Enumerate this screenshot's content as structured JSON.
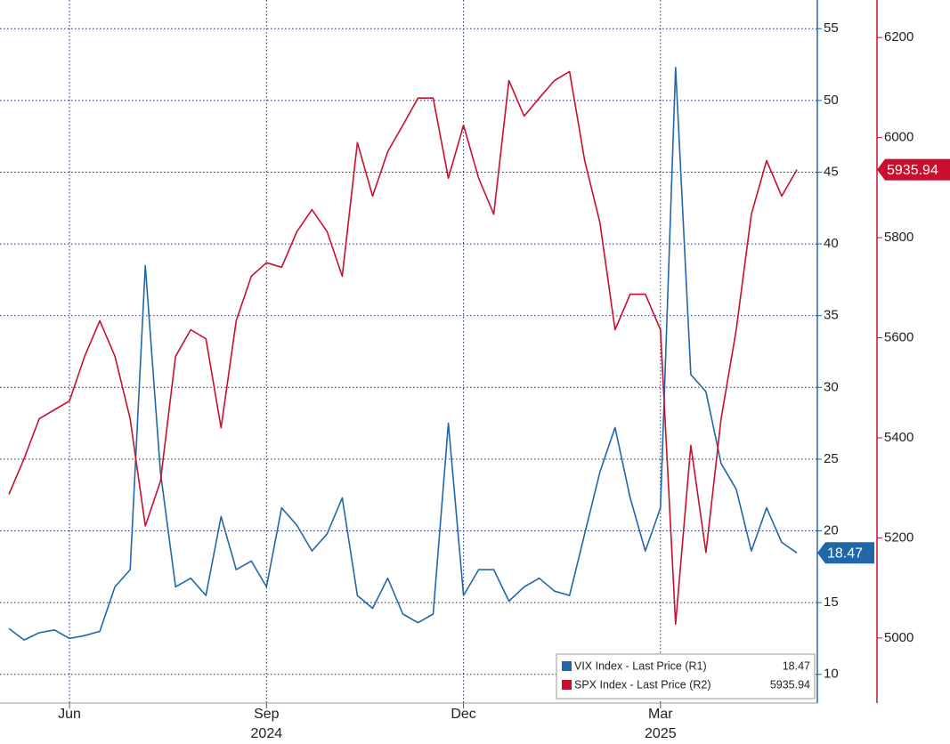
{
  "chart_data": {
    "type": "line",
    "categories": [
      null,
      null,
      null,
      null,
      "Jun",
      null,
      null,
      null,
      null,
      null,
      null,
      null,
      null,
      null,
      null,
      null,
      null,
      "Sep\n2024",
      null,
      null,
      null,
      null,
      null,
      null,
      null,
      null,
      null,
      null,
      null,
      null,
      "Dec",
      null,
      null,
      null,
      null,
      null,
      null,
      null,
      null,
      null,
      null,
      null,
      null,
      "Mar\n2025",
      null,
      null,
      null,
      null,
      null,
      null,
      null,
      null,
      null
    ],
    "series": [
      {
        "name": "VIX Index - Last Price (R1)",
        "color": "#2266aa",
        "axis": "y",
        "values": [
          13.2,
          12.4,
          12.9,
          13.1,
          12.5,
          12.7,
          13.0,
          16.1,
          17.3,
          38.5,
          24.1,
          16.1,
          16.7,
          15.5,
          21.0,
          17.3,
          17.9,
          16.1,
          21.6,
          20.4,
          18.6,
          19.8,
          22.3,
          15.5,
          14.6,
          16.7,
          14.2,
          13.6,
          14.2,
          27.5,
          15.5,
          17.3,
          17.3,
          15.1,
          16.1,
          16.7,
          15.8,
          15.5,
          19.8,
          24.1,
          27.2,
          22.3,
          18.6,
          21.6,
          52.3,
          30.9,
          29.7,
          24.7,
          22.9,
          18.6,
          21.6,
          19.2,
          18.47
        ]
      },
      {
        "name": "SPX Index - Last Price (R2)",
        "color": "#c8102e",
        "axis": "y2",
        "values": [
          5287,
          5358,
          5438,
          5456,
          5474,
          5563,
          5634,
          5563,
          5438,
          5224,
          5313,
          5563,
          5616,
          5598,
          5420,
          5634,
          5723,
          5750,
          5741,
          5812,
          5856,
          5812,
          5723,
          5990,
          5883,
          5972,
          6025,
          6079,
          6079,
          5919,
          6025,
          5919,
          5847,
          6114,
          6043,
          6079,
          6114,
          6132,
          5954,
          5830,
          5616,
          5687,
          5687,
          5616,
          5028,
          5385,
          5171,
          5438,
          5616,
          5847,
          5954,
          5883,
          5935.94
        ]
      }
    ],
    "ylim": [
      8,
      57
    ],
    "yticks": [
      10,
      15,
      20,
      25,
      30,
      35,
      40,
      45,
      50,
      55
    ],
    "y2lim": [
      4870,
      6275
    ],
    "y2ticks": [
      5000,
      5200,
      5400,
      5600,
      5800,
      6000,
      6200
    ],
    "grid": true
  }
}
